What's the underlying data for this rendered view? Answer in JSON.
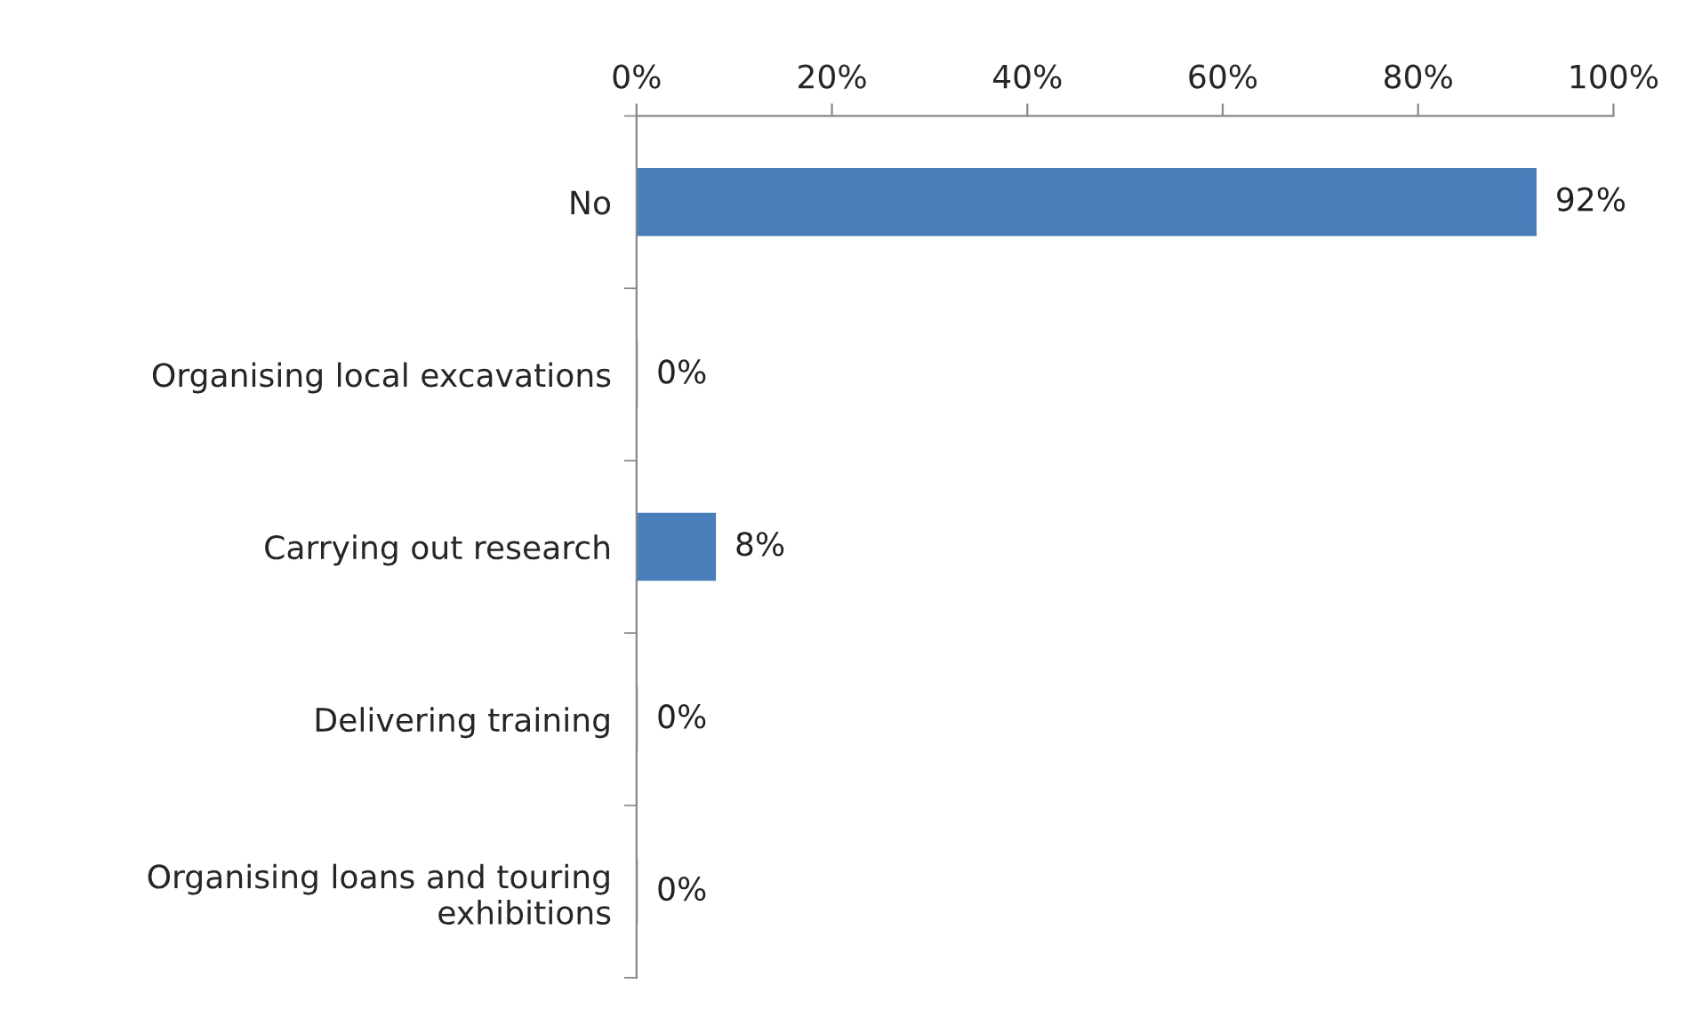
{
  "chart_data": {
    "type": "bar",
    "orientation": "horizontal",
    "categories": [
      "No",
      "Organising local excavations",
      "Carrying out research",
      "Delivering training",
      "Organising loans and touring exhibitions"
    ],
    "values": [
      92,
      0,
      8,
      0,
      0
    ],
    "value_labels": [
      "92%",
      "0%",
      "8%",
      "0%",
      "0%"
    ],
    "color": "#4a7ebb",
    "xlim": [
      0,
      100
    ],
    "xticks": [
      {
        "value": 0,
        "label": "0%"
      },
      {
        "value": 20,
        "label": "20%"
      },
      {
        "value": 40,
        "label": "40%"
      },
      {
        "value": 60,
        "label": "60%"
      },
      {
        "value": 80,
        "label": "80%"
      },
      {
        "value": 100,
        "label": "100%"
      }
    ],
    "grid": false
  }
}
